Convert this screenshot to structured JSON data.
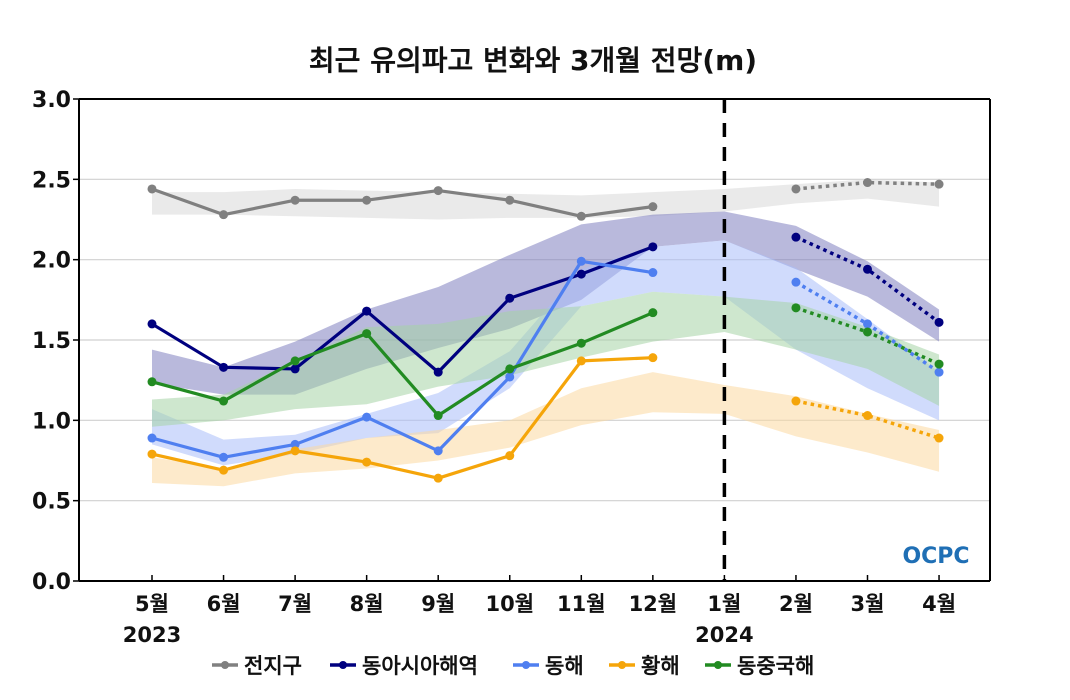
{
  "chart_data": {
    "type": "line",
    "title": "최근 유의파고 변화와 3개월 전망(m)",
    "xlabel": "",
    "ylabel": "",
    "ylim": [
      0,
      3.0
    ],
    "yticks": [
      "0.0",
      "0.5",
      "1.0",
      "1.5",
      "2.0",
      "2.5",
      "3.0"
    ],
    "grid": true,
    "categories": [
      "5월",
      "6월",
      "7월",
      "8월",
      "9월",
      "10월",
      "11월",
      "12월",
      "1월",
      "2월",
      "3월",
      "4월"
    ],
    "year_labels": [
      {
        "category": "5월",
        "label": "2023"
      },
      {
        "category": "1월",
        "label": "2024"
      }
    ],
    "forecast_divider_category": "1월",
    "legend_position": "bottom",
    "logo": "OCPC",
    "series": [
      {
        "name": "전지구",
        "color": "#808080",
        "band_color": "#d9d9d9",
        "observed": [
          2.44,
          2.28,
          2.37,
          2.37,
          2.43,
          2.37,
          2.27,
          2.33,
          null,
          null,
          null,
          null
        ],
        "forecast": [
          null,
          null,
          null,
          null,
          null,
          null,
          null,
          null,
          null,
          2.44,
          2.48,
          2.47
        ],
        "band_upper": [
          2.42,
          2.42,
          2.44,
          2.43,
          2.42,
          2.41,
          2.4,
          2.42,
          2.44,
          2.47,
          2.5,
          2.48
        ],
        "band_lower": [
          2.28,
          2.28,
          2.27,
          2.26,
          2.25,
          2.26,
          2.26,
          2.27,
          2.3,
          2.35,
          2.38,
          2.33
        ]
      },
      {
        "name": "동아시아해역",
        "color": "#00007f",
        "band_color": "#8080bf",
        "observed": [
          1.6,
          1.33,
          1.32,
          1.68,
          1.3,
          1.76,
          1.91,
          2.08,
          null,
          null,
          null,
          null
        ],
        "forecast": [
          null,
          null,
          null,
          null,
          null,
          null,
          null,
          null,
          null,
          2.14,
          1.94,
          1.61
        ],
        "band_upper": [
          1.44,
          1.33,
          1.49,
          1.69,
          1.83,
          2.03,
          2.22,
          2.28,
          2.3,
          2.21,
          1.99,
          1.69
        ],
        "band_lower": [
          1.23,
          1.16,
          1.16,
          1.32,
          1.45,
          1.57,
          1.75,
          2.08,
          2.12,
          1.94,
          1.77,
          1.49
        ]
      },
      {
        "name": "동해",
        "color": "#4f7ff0",
        "band_color": "#a9bdfa",
        "observed": [
          0.89,
          0.77,
          0.85,
          1.02,
          0.81,
          1.27,
          1.99,
          1.92,
          null,
          null,
          null,
          null
        ],
        "forecast": [
          null,
          null,
          null,
          null,
          null,
          null,
          null,
          null,
          null,
          1.86,
          1.6,
          1.3
        ],
        "band_upper": [
          1.07,
          0.88,
          0.91,
          1.04,
          1.17,
          1.43,
          1.94,
          2.08,
          2.12,
          1.95,
          1.63,
          1.3
        ],
        "band_lower": [
          0.85,
          0.72,
          0.79,
          0.89,
          0.92,
          1.2,
          1.71,
          1.8,
          1.77,
          1.44,
          1.2,
          1.0
        ]
      },
      {
        "name": "황해",
        "color": "#f5a50a",
        "band_color": "#fcd9a0",
        "observed": [
          0.79,
          0.69,
          0.81,
          0.74,
          0.64,
          0.78,
          1.37,
          1.39,
          null,
          null,
          null,
          null
        ],
        "forecast": [
          null,
          null,
          null,
          null,
          null,
          null,
          null,
          null,
          null,
          1.12,
          1.03,
          0.89
        ],
        "band_upper": [
          0.77,
          0.7,
          0.82,
          0.89,
          0.94,
          1.0,
          1.2,
          1.3,
          1.22,
          1.15,
          1.04,
          0.94
        ],
        "band_lower": [
          0.61,
          0.59,
          0.67,
          0.7,
          0.75,
          0.83,
          0.97,
          1.05,
          1.04,
          0.9,
          0.8,
          0.68
        ]
      },
      {
        "name": "동중국해",
        "color": "#228b22",
        "band_color": "#a6d3a6",
        "observed": [
          1.24,
          1.12,
          1.37,
          1.54,
          1.03,
          1.32,
          1.48,
          1.67,
          null,
          null,
          null,
          null
        ],
        "forecast": [
          null,
          null,
          null,
          null,
          null,
          null,
          null,
          null,
          null,
          1.7,
          1.55,
          1.35
        ],
        "band_upper": [
          1.13,
          1.16,
          1.37,
          1.58,
          1.6,
          1.68,
          1.71,
          1.8,
          1.77,
          1.73,
          1.58,
          1.41
        ],
        "band_lower": [
          0.96,
          1.0,
          1.07,
          1.1,
          1.21,
          1.28,
          1.39,
          1.49,
          1.55,
          1.44,
          1.32,
          1.09
        ]
      }
    ]
  }
}
